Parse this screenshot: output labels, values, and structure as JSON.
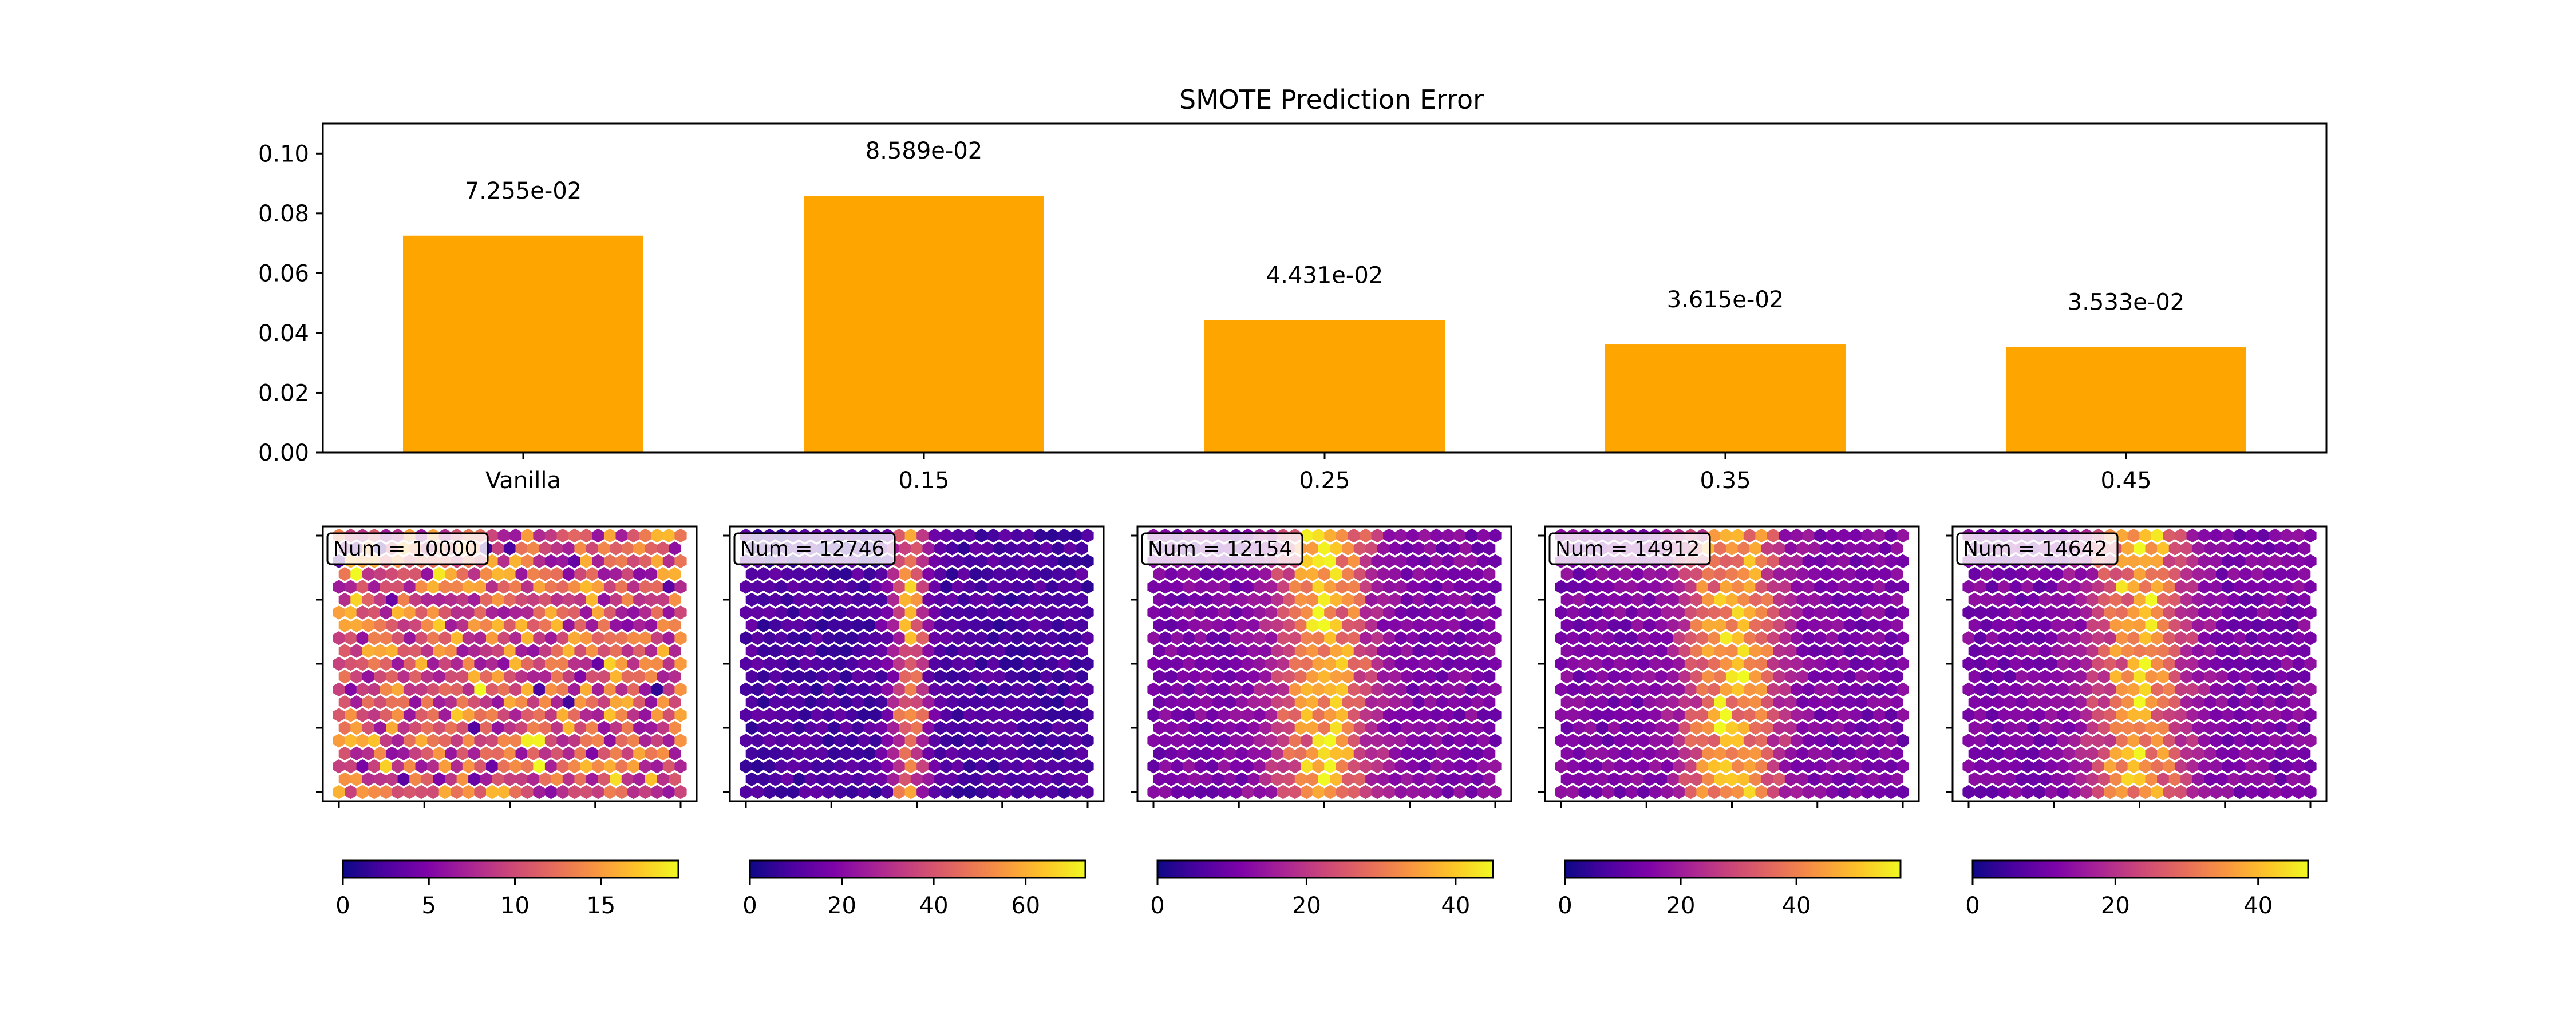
{
  "chart_data": [
    {
      "type": "bar",
      "title": "SMOTE Prediction Error",
      "categories": [
        "Vanilla",
        "0.15",
        "0.25",
        "0.35",
        "0.45"
      ],
      "values": [
        0.07255,
        0.08589,
        0.04431,
        0.03615,
        0.03533
      ],
      "value_labels": [
        "7.255e-02",
        "8.589e-02",
        "4.431e-02",
        "3.615e-02",
        "3.533e-02"
      ],
      "ylim": [
        0,
        0.11
      ],
      "yticks": [
        0.0,
        0.02,
        0.04,
        0.06,
        0.08,
        0.1
      ],
      "ytick_labels": [
        "0.00",
        "0.02",
        "0.04",
        "0.06",
        "0.08",
        "0.10"
      ],
      "bar_color": "#ffa500",
      "grid": false
    },
    {
      "type": "heatmap",
      "subtype": "hexbin",
      "colormap": "plasma",
      "panels": [
        {
          "annotation": "Num = 10000",
          "pattern": "uniform",
          "vmax": 19.5,
          "cbar_ticks": [
            0,
            5,
            10,
            15
          ],
          "cbar_tick_labels": [
            "0",
            "5",
            "10",
            "15"
          ]
        },
        {
          "annotation": "Num = 12746",
          "pattern": "band",
          "vmax": 73,
          "cbar_ticks": [
            0,
            20,
            40,
            60
          ],
          "cbar_tick_labels": [
            "0",
            "20",
            "40",
            "60"
          ]
        },
        {
          "annotation": "Num = 12154",
          "pattern": "band",
          "vmax": 45,
          "cbar_ticks": [
            0,
            20,
            40
          ],
          "cbar_tick_labels": [
            "0",
            "20",
            "40"
          ]
        },
        {
          "annotation": "Num = 14912",
          "pattern": "band",
          "vmax": 58,
          "cbar_ticks": [
            0,
            20,
            40
          ],
          "cbar_tick_labels": [
            "0",
            "20",
            "40"
          ]
        },
        {
          "annotation": "Num = 14642",
          "pattern": "band",
          "vmax": 47,
          "cbar_ticks": [
            0,
            20,
            40
          ],
          "cbar_tick_labels": [
            "0",
            "20",
            "40"
          ]
        }
      ]
    }
  ]
}
